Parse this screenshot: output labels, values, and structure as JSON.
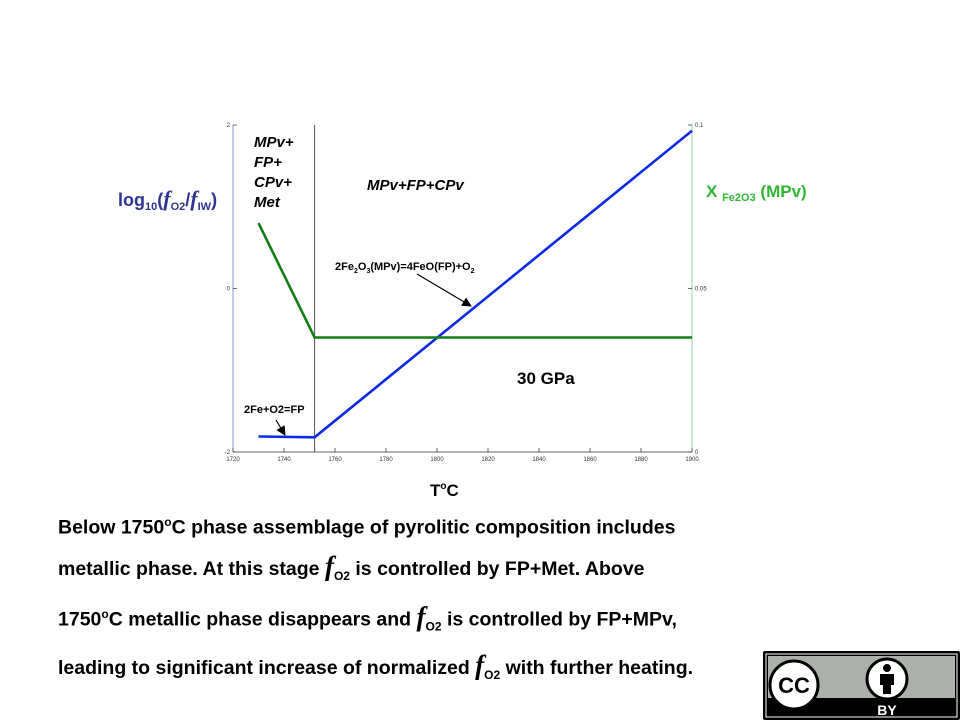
{
  "chart_data": {
    "type": "line",
    "xlabel": "ToC",
    "ylabel_left": "log10(fO2/fIW)",
    "ylabel_right": "X Fe2O3 (MPv)",
    "xlim": [
      1720,
      1900
    ],
    "ylim_left": [
      -2,
      2
    ],
    "ylim_right": [
      0,
      0.1
    ],
    "x_ticks": [
      "1720",
      "1740",
      "1760",
      "1780",
      "1800",
      "1820",
      "1840",
      "1860",
      "1880",
      "1900"
    ],
    "y_ticks_left": [
      "2",
      "0",
      "-2"
    ],
    "y_ticks_right": [
      "0.1",
      "0.05",
      "0"
    ],
    "boundary_x": 1752,
    "series": [
      {
        "color": "#0b2be6",
        "axis": "left",
        "x": [
          1730,
          1752,
          1900
        ],
        "y": [
          -1.81,
          -1.82,
          1.93
        ]
      },
      {
        "color": "#127d15",
        "axis": "right",
        "x": [
          1730,
          1752,
          1900
        ],
        "y": [
          0.07,
          0.035,
          0.035
        ]
      }
    ],
    "annotations": [
      {
        "text": "MPv+\nFP+\nCPv+\nMet"
      },
      {
        "text": "MPv+FP+CPv"
      },
      {
        "text": "2Fe2O3(MPv)=4FeO(FP)+O2"
      },
      {
        "text": "2Fe+O2=FP"
      },
      {
        "text": "30 GPa"
      }
    ]
  },
  "caption": {
    "line1_a": "Below 1750",
    "line1_sup": "o",
    "line1_b": "C phase assemblage of pyrolitic composition includes",
    "line2_a": "metallic phase. At this stage ",
    "f": "f",
    "sub": "O2",
    "line2_b": " is controlled by FP+Met. Above",
    "line3_a": "1750",
    "line3_sup": "o",
    "line3_b": "C metallic phase disappears and ",
    "line3_c": " is controlled by FP+MPv,",
    "line4_a": "leading to significant increase of normalized ",
    "line4_b": " with further heating."
  },
  "license": {
    "cc": "CC",
    "by": "BY"
  },
  "colors": {
    "blue_line": "#0b2be6",
    "green_line": "#127d15",
    "left_label": "#2d3590",
    "right_label": "#2fb534"
  }
}
